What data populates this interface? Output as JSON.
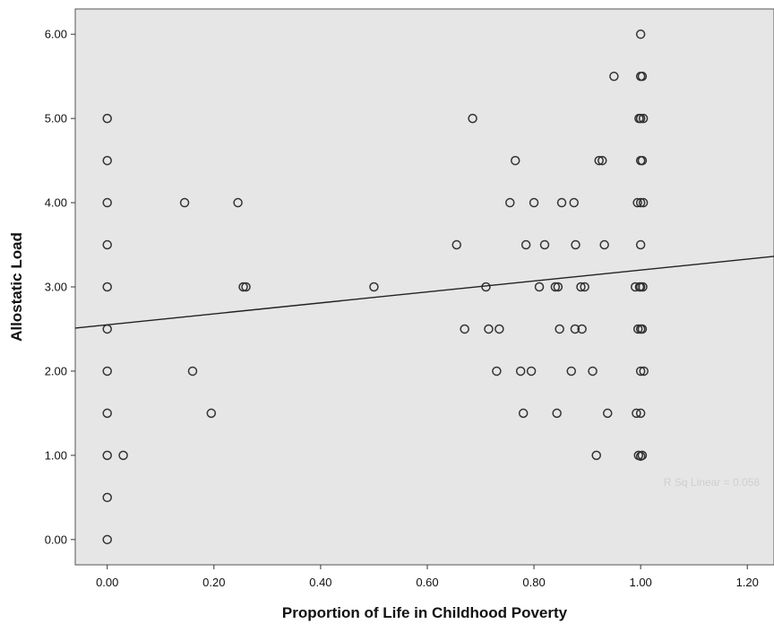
{
  "chart_data": {
    "type": "scatter",
    "xlabel": "Proportion of Life in Childhood Poverty",
    "ylabel": "Allostatic Load",
    "xlim": [
      -0.06,
      1.25
    ],
    "ylim": [
      -0.3,
      6.3
    ],
    "xticks": [
      "0.00",
      "0.20",
      "0.40",
      "0.60",
      "0.80",
      "1.00",
      "1.20"
    ],
    "yticks": [
      "0.00",
      "1.00",
      "2.00",
      "3.00",
      "4.00",
      "5.00",
      "6.00"
    ],
    "annotation": "R Sq Linear = 0.058",
    "fit_line": {
      "intercept": 2.55,
      "slope": 0.65
    },
    "colors": {
      "background": "#e6e6e6",
      "marker": "#333333",
      "line": "#222222"
    },
    "points": [
      [
        0,
        0
      ],
      [
        0,
        0.5
      ],
      [
        0,
        1
      ],
      [
        0,
        1.5
      ],
      [
        0,
        2
      ],
      [
        0,
        2.5
      ],
      [
        0,
        3
      ],
      [
        0,
        3.5
      ],
      [
        0,
        4
      ],
      [
        0,
        4.5
      ],
      [
        0,
        5
      ],
      [
        0.03,
        1
      ],
      [
        0.145,
        4
      ],
      [
        0.16,
        2
      ],
      [
        0.195,
        1.5
      ],
      [
        0.245,
        4
      ],
      [
        0.255,
        3
      ],
      [
        0.26,
        3
      ],
      [
        0.5,
        3
      ],
      [
        0.655,
        3.5
      ],
      [
        0.67,
        2.5
      ],
      [
        0.685,
        5
      ],
      [
        0.71,
        3
      ],
      [
        0.715,
        2.5
      ],
      [
        0.73,
        2
      ],
      [
        0.735,
        2.5
      ],
      [
        0.755,
        4
      ],
      [
        0.765,
        4.5
      ],
      [
        0.775,
        2
      ],
      [
        0.78,
        1.5
      ],
      [
        0.785,
        3.5
      ],
      [
        0.795,
        2
      ],
      [
        0.8,
        4
      ],
      [
        0.81,
        3
      ],
      [
        0.82,
        3.5
      ],
      [
        0.84,
        3
      ],
      [
        0.843,
        1.5
      ],
      [
        0.845,
        3
      ],
      [
        0.848,
        2.5
      ],
      [
        0.852,
        4
      ],
      [
        0.87,
        2
      ],
      [
        0.875,
        4
      ],
      [
        0.877,
        2.5
      ],
      [
        0.878,
        3.5
      ],
      [
        0.888,
        3
      ],
      [
        0.89,
        2.5
      ],
      [
        0.895,
        3
      ],
      [
        0.91,
        2
      ],
      [
        0.917,
        1
      ],
      [
        0.922,
        4.5
      ],
      [
        0.928,
        4.5
      ],
      [
        0.932,
        3.5
      ],
      [
        0.938,
        1.5
      ],
      [
        0.95,
        5.5
      ],
      [
        0.99,
        3
      ],
      [
        0.992,
        1.5
      ],
      [
        0.994,
        4
      ],
      [
        0.995,
        2.5
      ],
      [
        0.996,
        1
      ],
      [
        0.997,
        5
      ],
      [
        0.998,
        3
      ],
      [
        1,
        0.99
      ],
      [
        1,
        1.5
      ],
      [
        1,
        2
      ],
      [
        1,
        2.5
      ],
      [
        1,
        3
      ],
      [
        1,
        3.5
      ],
      [
        1,
        4
      ],
      [
        1,
        4.5
      ],
      [
        1,
        5
      ],
      [
        1,
        5.5
      ],
      [
        1,
        6
      ],
      [
        1.003,
        1
      ],
      [
        1.003,
        2.5
      ],
      [
        1.003,
        4.5
      ],
      [
        1.003,
        5.5
      ],
      [
        1.004,
        3
      ],
      [
        1.005,
        4
      ],
      [
        1.005,
        5
      ],
      [
        1.006,
        2
      ]
    ]
  }
}
